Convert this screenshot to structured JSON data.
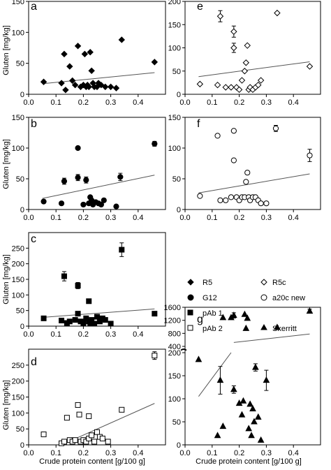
{
  "figure": {
    "xlabel": "Crude protein content [g/100 g]",
    "ylabel": "Gluten [mg/kg]"
  },
  "legend": {
    "items": [
      {
        "label": "R5",
        "marker": "diamond",
        "filled": true
      },
      {
        "label": "R5c",
        "marker": "diamond",
        "filled": false
      },
      {
        "label": "G12",
        "marker": "circle",
        "filled": true
      },
      {
        "label": "a20c new",
        "marker": "circle",
        "filled": false
      },
      {
        "label": "pAb 1",
        "marker": "square",
        "filled": true
      },
      {
        "label": "Skerritt",
        "marker": "triangle",
        "filled": true
      },
      {
        "label": "pAb 2",
        "marker": "square",
        "filled": false
      }
    ]
  },
  "chart_data": [
    {
      "panel": "a",
      "type": "scatter",
      "series_name": "R5",
      "marker": "diamond",
      "filled": true,
      "xlim": [
        0.0,
        0.5
      ],
      "ylim": [
        0,
        150
      ],
      "xticks": [
        "0.0",
        "0.1",
        "0.2",
        "0.3",
        "0.4"
      ],
      "yticks": [
        "0",
        "50",
        "100",
        "150"
      ],
      "points": [
        {
          "x": 0.055,
          "y": 20
        },
        {
          "x": 0.12,
          "y": 18
        },
        {
          "x": 0.13,
          "y": 65
        },
        {
          "x": 0.135,
          "y": 7
        },
        {
          "x": 0.15,
          "y": 45
        },
        {
          "x": 0.16,
          "y": 22
        },
        {
          "x": 0.17,
          "y": 15
        },
        {
          "x": 0.18,
          "y": 78
        },
        {
          "x": 0.19,
          "y": 12
        },
        {
          "x": 0.2,
          "y": 15
        },
        {
          "x": 0.205,
          "y": 65
        },
        {
          "x": 0.21,
          "y": 12
        },
        {
          "x": 0.215,
          "y": 15
        },
        {
          "x": 0.22,
          "y": 12
        },
        {
          "x": 0.225,
          "y": 68
        },
        {
          "x": 0.23,
          "y": 38
        },
        {
          "x": 0.235,
          "y": 18
        },
        {
          "x": 0.24,
          "y": 12
        },
        {
          "x": 0.25,
          "y": 12
        },
        {
          "x": 0.255,
          "y": 18
        },
        {
          "x": 0.265,
          "y": 15
        },
        {
          "x": 0.28,
          "y": 12
        },
        {
          "x": 0.3,
          "y": 12
        },
        {
          "x": 0.34,
          "y": 88
        },
        {
          "x": 0.32,
          "y": 10
        },
        {
          "x": 0.46,
          "y": 52
        }
      ],
      "fit": [
        {
          "x": 0.05,
          "y": 17
        },
        {
          "x": 0.46,
          "y": 35
        }
      ]
    },
    {
      "panel": "b",
      "type": "scatter",
      "series_name": "G12",
      "marker": "circle",
      "filled": true,
      "xlim": [
        0.0,
        0.5
      ],
      "ylim": [
        0,
        150
      ],
      "xticks": [
        "0.0",
        "0.1",
        "0.2",
        "0.3",
        "0.4"
      ],
      "yticks": [
        "0",
        "50",
        "100",
        "150"
      ],
      "points": [
        {
          "x": 0.055,
          "y": 13
        },
        {
          "x": 0.12,
          "y": 10
        },
        {
          "x": 0.13,
          "y": 46
        },
        {
          "x": 0.18,
          "y": 52
        },
        {
          "x": 0.18,
          "y": 100
        },
        {
          "x": 0.2,
          "y": 8
        },
        {
          "x": 0.21,
          "y": 48
        },
        {
          "x": 0.22,
          "y": 10
        },
        {
          "x": 0.225,
          "y": 20
        },
        {
          "x": 0.23,
          "y": 15
        },
        {
          "x": 0.235,
          "y": 8
        },
        {
          "x": 0.245,
          "y": 12
        },
        {
          "x": 0.255,
          "y": 10
        },
        {
          "x": 0.265,
          "y": 8
        },
        {
          "x": 0.275,
          "y": 15
        },
        {
          "x": 0.32,
          "y": 5
        },
        {
          "x": 0.335,
          "y": 53
        },
        {
          "x": 0.46,
          "y": 107
        }
      ],
      "errors": [
        {
          "x": 0.13,
          "y": 46,
          "err": 5
        },
        {
          "x": 0.18,
          "y": 52,
          "err": 5
        },
        {
          "x": 0.21,
          "y": 48,
          "err": 5
        },
        {
          "x": 0.335,
          "y": 53,
          "err": 6
        },
        {
          "x": 0.46,
          "y": 107,
          "err": 4
        }
      ],
      "fit": [
        {
          "x": 0.05,
          "y": 18
        },
        {
          "x": 0.46,
          "y": 56
        }
      ]
    },
    {
      "panel": "c",
      "type": "scatter",
      "series_name": "pAb 1",
      "marker": "square",
      "filled": true,
      "xlim": [
        0.0,
        0.5
      ],
      "ylim": [
        0,
        300
      ],
      "xticks": [
        "0.0",
        "0.1",
        "0.2",
        "0.3",
        "0.4"
      ],
      "yticks": [
        "0",
        "50",
        "100",
        "150",
        "200",
        "250"
      ],
      "points": [
        {
          "x": 0.055,
          "y": 25
        },
        {
          "x": 0.12,
          "y": 18
        },
        {
          "x": 0.13,
          "y": 160
        },
        {
          "x": 0.14,
          "y": 10
        },
        {
          "x": 0.15,
          "y": 15
        },
        {
          "x": 0.17,
          "y": 20
        },
        {
          "x": 0.18,
          "y": 130
        },
        {
          "x": 0.18,
          "y": 40
        },
        {
          "x": 0.19,
          "y": 15
        },
        {
          "x": 0.2,
          "y": 10
        },
        {
          "x": 0.21,
          "y": 25
        },
        {
          "x": 0.22,
          "y": 80
        },
        {
          "x": 0.22,
          "y": 15
        },
        {
          "x": 0.225,
          "y": 10
        },
        {
          "x": 0.23,
          "y": 20
        },
        {
          "x": 0.24,
          "y": 8
        },
        {
          "x": 0.25,
          "y": 30
        },
        {
          "x": 0.26,
          "y": 15
        },
        {
          "x": 0.27,
          "y": 25
        },
        {
          "x": 0.28,
          "y": 20
        },
        {
          "x": 0.3,
          "y": 8
        },
        {
          "x": 0.34,
          "y": 245
        },
        {
          "x": 0.46,
          "y": 40
        }
      ],
      "errors": [
        {
          "x": 0.13,
          "y": 160,
          "err": 15
        },
        {
          "x": 0.18,
          "y": 130,
          "err": 10
        },
        {
          "x": 0.34,
          "y": 245,
          "err": 22
        }
      ],
      "fit": [
        {
          "x": 0.05,
          "y": 28
        },
        {
          "x": 0.46,
          "y": 55
        }
      ]
    },
    {
      "panel": "d",
      "type": "scatter",
      "series_name": "pAb 2",
      "marker": "square",
      "filled": false,
      "xlim": [
        0.0,
        0.5
      ],
      "ylim": [
        0,
        300
      ],
      "xticks": [
        "0.0",
        "0.1",
        "0.2",
        "0.3",
        "0.4"
      ],
      "yticks": [
        "0",
        "50",
        "100",
        "150",
        "200",
        "250"
      ],
      "points": [
        {
          "x": 0.055,
          "y": 33
        },
        {
          "x": 0.12,
          "y": 5
        },
        {
          "x": 0.13,
          "y": 10
        },
        {
          "x": 0.14,
          "y": 85
        },
        {
          "x": 0.15,
          "y": 15
        },
        {
          "x": 0.16,
          "y": 10
        },
        {
          "x": 0.17,
          "y": 15
        },
        {
          "x": 0.18,
          "y": 125
        },
        {
          "x": 0.185,
          "y": 95
        },
        {
          "x": 0.19,
          "y": 10
        },
        {
          "x": 0.2,
          "y": 15
        },
        {
          "x": 0.21,
          "y": 10
        },
        {
          "x": 0.22,
          "y": 90
        },
        {
          "x": 0.22,
          "y": 20
        },
        {
          "x": 0.23,
          "y": 30
        },
        {
          "x": 0.24,
          "y": 10
        },
        {
          "x": 0.25,
          "y": 40
        },
        {
          "x": 0.26,
          "y": 25
        },
        {
          "x": 0.27,
          "y": 20
        },
        {
          "x": 0.29,
          "y": 10
        },
        {
          "x": 0.34,
          "y": 110
        },
        {
          "x": 0.46,
          "y": 280
        }
      ],
      "errors": [
        {
          "x": 0.46,
          "y": 280,
          "err": 12
        }
      ],
      "fit": [
        {
          "x": 0.12,
          "y": 0
        },
        {
          "x": 0.46,
          "y": 130
        }
      ]
    },
    {
      "panel": "e",
      "type": "scatter",
      "series_name": "R5c",
      "marker": "diamond",
      "filled": false,
      "xlim": [
        0.0,
        0.5
      ],
      "ylim": [
        0,
        200
      ],
      "xticks": [
        "0.0",
        "0.1",
        "0.2",
        "0.3",
        "0.4"
      ],
      "yticks": [
        "0",
        "50",
        "100",
        "150",
        "200"
      ],
      "points": [
        {
          "x": 0.055,
          "y": 22
        },
        {
          "x": 0.12,
          "y": 20
        },
        {
          "x": 0.13,
          "y": 168
        },
        {
          "x": 0.15,
          "y": 15
        },
        {
          "x": 0.17,
          "y": 15
        },
        {
          "x": 0.18,
          "y": 135
        },
        {
          "x": 0.18,
          "y": 100
        },
        {
          "x": 0.19,
          "y": 15
        },
        {
          "x": 0.2,
          "y": 10
        },
        {
          "x": 0.21,
          "y": 30
        },
        {
          "x": 0.22,
          "y": 50
        },
        {
          "x": 0.225,
          "y": 68
        },
        {
          "x": 0.23,
          "y": 105
        },
        {
          "x": 0.235,
          "y": 10
        },
        {
          "x": 0.24,
          "y": 15
        },
        {
          "x": 0.25,
          "y": 10
        },
        {
          "x": 0.26,
          "y": 15
        },
        {
          "x": 0.27,
          "y": 20
        },
        {
          "x": 0.28,
          "y": 30
        },
        {
          "x": 0.34,
          "y": 175
        },
        {
          "x": 0.46,
          "y": 60
        }
      ],
      "errors": [
        {
          "x": 0.13,
          "y": 168,
          "err": 12
        },
        {
          "x": 0.18,
          "y": 135,
          "err": 12
        },
        {
          "x": 0.18,
          "y": 100,
          "err": 10
        }
      ],
      "fit": [
        {
          "x": 0.05,
          "y": 38
        },
        {
          "x": 0.46,
          "y": 70
        }
      ]
    },
    {
      "panel": "f",
      "type": "scatter",
      "series_name": "a20c new",
      "marker": "circle",
      "filled": false,
      "xlim": [
        0.0,
        0.5
      ],
      "ylim": [
        0,
        150
      ],
      "xticks": [
        "0.0",
        "0.1",
        "0.2",
        "0.3",
        "0.4"
      ],
      "yticks": [
        "0",
        "50",
        "100",
        "150"
      ],
      "points": [
        {
          "x": 0.055,
          "y": 22
        },
        {
          "x": 0.12,
          "y": 120
        },
        {
          "x": 0.13,
          "y": 15
        },
        {
          "x": 0.15,
          "y": 15
        },
        {
          "x": 0.17,
          "y": 20
        },
        {
          "x": 0.18,
          "y": 128
        },
        {
          "x": 0.18,
          "y": 80
        },
        {
          "x": 0.19,
          "y": 20
        },
        {
          "x": 0.2,
          "y": 15
        },
        {
          "x": 0.21,
          "y": 20
        },
        {
          "x": 0.22,
          "y": 20
        },
        {
          "x": 0.225,
          "y": 45
        },
        {
          "x": 0.23,
          "y": 60
        },
        {
          "x": 0.235,
          "y": 20
        },
        {
          "x": 0.24,
          "y": 15
        },
        {
          "x": 0.25,
          "y": 20
        },
        {
          "x": 0.26,
          "y": 20
        },
        {
          "x": 0.27,
          "y": 15
        },
        {
          "x": 0.28,
          "y": 10
        },
        {
          "x": 0.3,
          "y": 10
        },
        {
          "x": 0.335,
          "y": 132
        },
        {
          "x": 0.46,
          "y": 88
        }
      ],
      "errors": [
        {
          "x": 0.335,
          "y": 132,
          "err": 5
        },
        {
          "x": 0.46,
          "y": 88,
          "err": 10
        }
      ],
      "fit": [
        {
          "x": 0.05,
          "y": 27
        },
        {
          "x": 0.46,
          "y": 58
        }
      ]
    },
    {
      "panel": "g",
      "type": "scatter",
      "series_name": "Skerritt",
      "marker": "triangle",
      "filled": true,
      "xlim": [
        0.0,
        0.5
      ],
      "ylim_lower": [
        0,
        200
      ],
      "ylim_upper": [
        400,
        1600
      ],
      "xticks": [
        "0.0",
        "0.1",
        "0.2",
        "0.3",
        "0.4"
      ],
      "yticks": [
        "0",
        "50",
        "100",
        "150",
        "200",
        "400",
        "800",
        "1200",
        "1600"
      ],
      "points": [
        {
          "x": 0.05,
          "y": 185
        },
        {
          "x": 0.12,
          "y": 20
        },
        {
          "x": 0.13,
          "y": 140
        },
        {
          "x": 0.14,
          "y": 1280
        },
        {
          "x": 0.14,
          "y": 40
        },
        {
          "x": 0.17,
          "y": 1280
        },
        {
          "x": 0.18,
          "y": 1350
        },
        {
          "x": 0.18,
          "y": 120
        },
        {
          "x": 0.2,
          "y": 90
        },
        {
          "x": 0.21,
          "y": 65
        },
        {
          "x": 0.215,
          "y": 95
        },
        {
          "x": 0.22,
          "y": 1380
        },
        {
          "x": 0.225,
          "y": 950
        },
        {
          "x": 0.23,
          "y": 1260
        },
        {
          "x": 0.235,
          "y": 35
        },
        {
          "x": 0.24,
          "y": 88
        },
        {
          "x": 0.245,
          "y": 20
        },
        {
          "x": 0.25,
          "y": 78
        },
        {
          "x": 0.255,
          "y": 50
        },
        {
          "x": 0.26,
          "y": 168
        },
        {
          "x": 0.27,
          "y": 60
        },
        {
          "x": 0.28,
          "y": 10
        },
        {
          "x": 0.3,
          "y": 140
        },
        {
          "x": 0.34,
          "y": 980
        },
        {
          "x": 0.46,
          "y": 1480
        }
      ],
      "errors": [
        {
          "x": 0.13,
          "y": 140,
          "err": 30
        },
        {
          "x": 0.18,
          "y": 1350,
          "err": 80
        },
        {
          "x": 0.18,
          "y": 120,
          "err": 8
        },
        {
          "x": 0.26,
          "y": 168,
          "err": 8
        },
        {
          "x": 0.3,
          "y": 140,
          "err": 22
        },
        {
          "x": 0.46,
          "y": 1480,
          "err": 60
        }
      ],
      "fit_lower": [
        {
          "x": 0.05,
          "y": 105
        },
        {
          "x": 0.17,
          "y": 210
        }
      ],
      "fit_upper": [
        {
          "x": 0.18,
          "y": 520
        },
        {
          "x": 0.46,
          "y": 780
        }
      ]
    }
  ]
}
